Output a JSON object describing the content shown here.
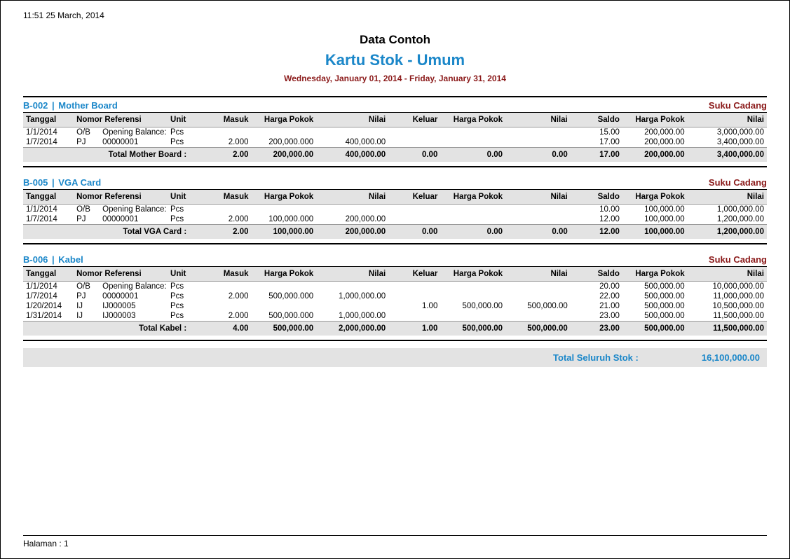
{
  "timestamp": "11:51   25 March, 2014",
  "title": "Data Contoh",
  "subtitle": "Kartu Stok - Umum",
  "daterange": "Wednesday, January 01, 2014 - Friday, January 31, 2014",
  "columns": {
    "tanggal": "Tanggal",
    "nomor_referensi": "Nomor Referensi",
    "unit": "Unit",
    "masuk": "Masuk",
    "harga_pokok": "Harga Pokok",
    "nilai": "Nilai",
    "keluar": "Keluar",
    "saldo": "Saldo"
  },
  "category_label": "Suku Cadang",
  "sections": [
    {
      "code": "B-002",
      "name": "Mother Board",
      "rows": [
        {
          "tanggal": "1/1/2014",
          "reftype": "O/B",
          "refno": "Opening Balance:",
          "unit": "Pcs",
          "masuk": "",
          "hp1": "",
          "nilai1": "",
          "keluar": "",
          "hp2": "",
          "nilai2": "",
          "saldo": "15.00",
          "hp3": "200,000.00",
          "nilai3": "3,000,000.00"
        },
        {
          "tanggal": "1/7/2014",
          "reftype": "PJ",
          "refno": "00000001",
          "unit": "Pcs",
          "masuk": "2.000",
          "hp1": "200,000.000",
          "nilai1": "400,000.00",
          "keluar": "",
          "hp2": "",
          "nilai2": "",
          "saldo": "17.00",
          "hp3": "200,000.00",
          "nilai3": "3,400,000.00"
        }
      ],
      "total": {
        "label": "Total Mother Board  :",
        "masuk": "2.00",
        "hp1": "200,000.00",
        "nilai1": "400,000.00",
        "keluar": "0.00",
        "hp2": "0.00",
        "nilai2": "0.00",
        "saldo": "17.00",
        "hp3": "200,000.00",
        "nilai3": "3,400,000.00"
      }
    },
    {
      "code": "B-005",
      "name": "VGA Card",
      "rows": [
        {
          "tanggal": "1/1/2014",
          "reftype": "O/B",
          "refno": "Opening Balance:",
          "unit": "Pcs",
          "masuk": "",
          "hp1": "",
          "nilai1": "",
          "keluar": "",
          "hp2": "",
          "nilai2": "",
          "saldo": "10.00",
          "hp3": "100,000.00",
          "nilai3": "1,000,000.00"
        },
        {
          "tanggal": "1/7/2014",
          "reftype": "PJ",
          "refno": "00000001",
          "unit": "Pcs",
          "masuk": "2.000",
          "hp1": "100,000.000",
          "nilai1": "200,000.00",
          "keluar": "",
          "hp2": "",
          "nilai2": "",
          "saldo": "12.00",
          "hp3": "100,000.00",
          "nilai3": "1,200,000.00"
        }
      ],
      "total": {
        "label": "Total VGA Card  :",
        "masuk": "2.00",
        "hp1": "100,000.00",
        "nilai1": "200,000.00",
        "keluar": "0.00",
        "hp2": "0.00",
        "nilai2": "0.00",
        "saldo": "12.00",
        "hp3": "100,000.00",
        "nilai3": "1,200,000.00"
      }
    },
    {
      "code": "B-006",
      "name": "Kabel",
      "rows": [
        {
          "tanggal": "1/1/2014",
          "reftype": "O/B",
          "refno": "Opening Balance:",
          "unit": "Pcs",
          "masuk": "",
          "hp1": "",
          "nilai1": "",
          "keluar": "",
          "hp2": "",
          "nilai2": "",
          "saldo": "20.00",
          "hp3": "500,000.00",
          "nilai3": "10,000,000.00"
        },
        {
          "tanggal": "1/7/2014",
          "reftype": "PJ",
          "refno": "00000001",
          "unit": "Pcs",
          "masuk": "2.000",
          "hp1": "500,000.000",
          "nilai1": "1,000,000.00",
          "keluar": "",
          "hp2": "",
          "nilai2": "",
          "saldo": "22.00",
          "hp3": "500,000.00",
          "nilai3": "11,000,000.00"
        },
        {
          "tanggal": "1/20/2014",
          "reftype": "IJ",
          "refno": "IJ000005",
          "unit": "Pcs",
          "masuk": "",
          "hp1": "",
          "nilai1": "",
          "keluar": "1.00",
          "hp2": "500,000.00",
          "nilai2": "500,000.00",
          "saldo": "21.00",
          "hp3": "500,000.00",
          "nilai3": "10,500,000.00"
        },
        {
          "tanggal": "1/31/2014",
          "reftype": "IJ",
          "refno": "IJ000003",
          "unit": "Pcs",
          "masuk": "2.000",
          "hp1": "500,000.000",
          "nilai1": "1,000,000.00",
          "keluar": "",
          "hp2": "",
          "nilai2": "",
          "saldo": "23.00",
          "hp3": "500,000.00",
          "nilai3": "11,500,000.00"
        }
      ],
      "total": {
        "label": "Total Kabel  :",
        "masuk": "4.00",
        "hp1": "500,000.00",
        "nilai1": "2,000,000.00",
        "keluar": "1.00",
        "hp2": "500,000.00",
        "nilai2": "500,000.00",
        "saldo": "23.00",
        "hp3": "500,000.00",
        "nilai3": "11,500,000.00"
      }
    }
  ],
  "grand_total": {
    "label": "Total Seluruh Stok :",
    "value": "16,100,000.00"
  },
  "footer": "Halaman : 1"
}
